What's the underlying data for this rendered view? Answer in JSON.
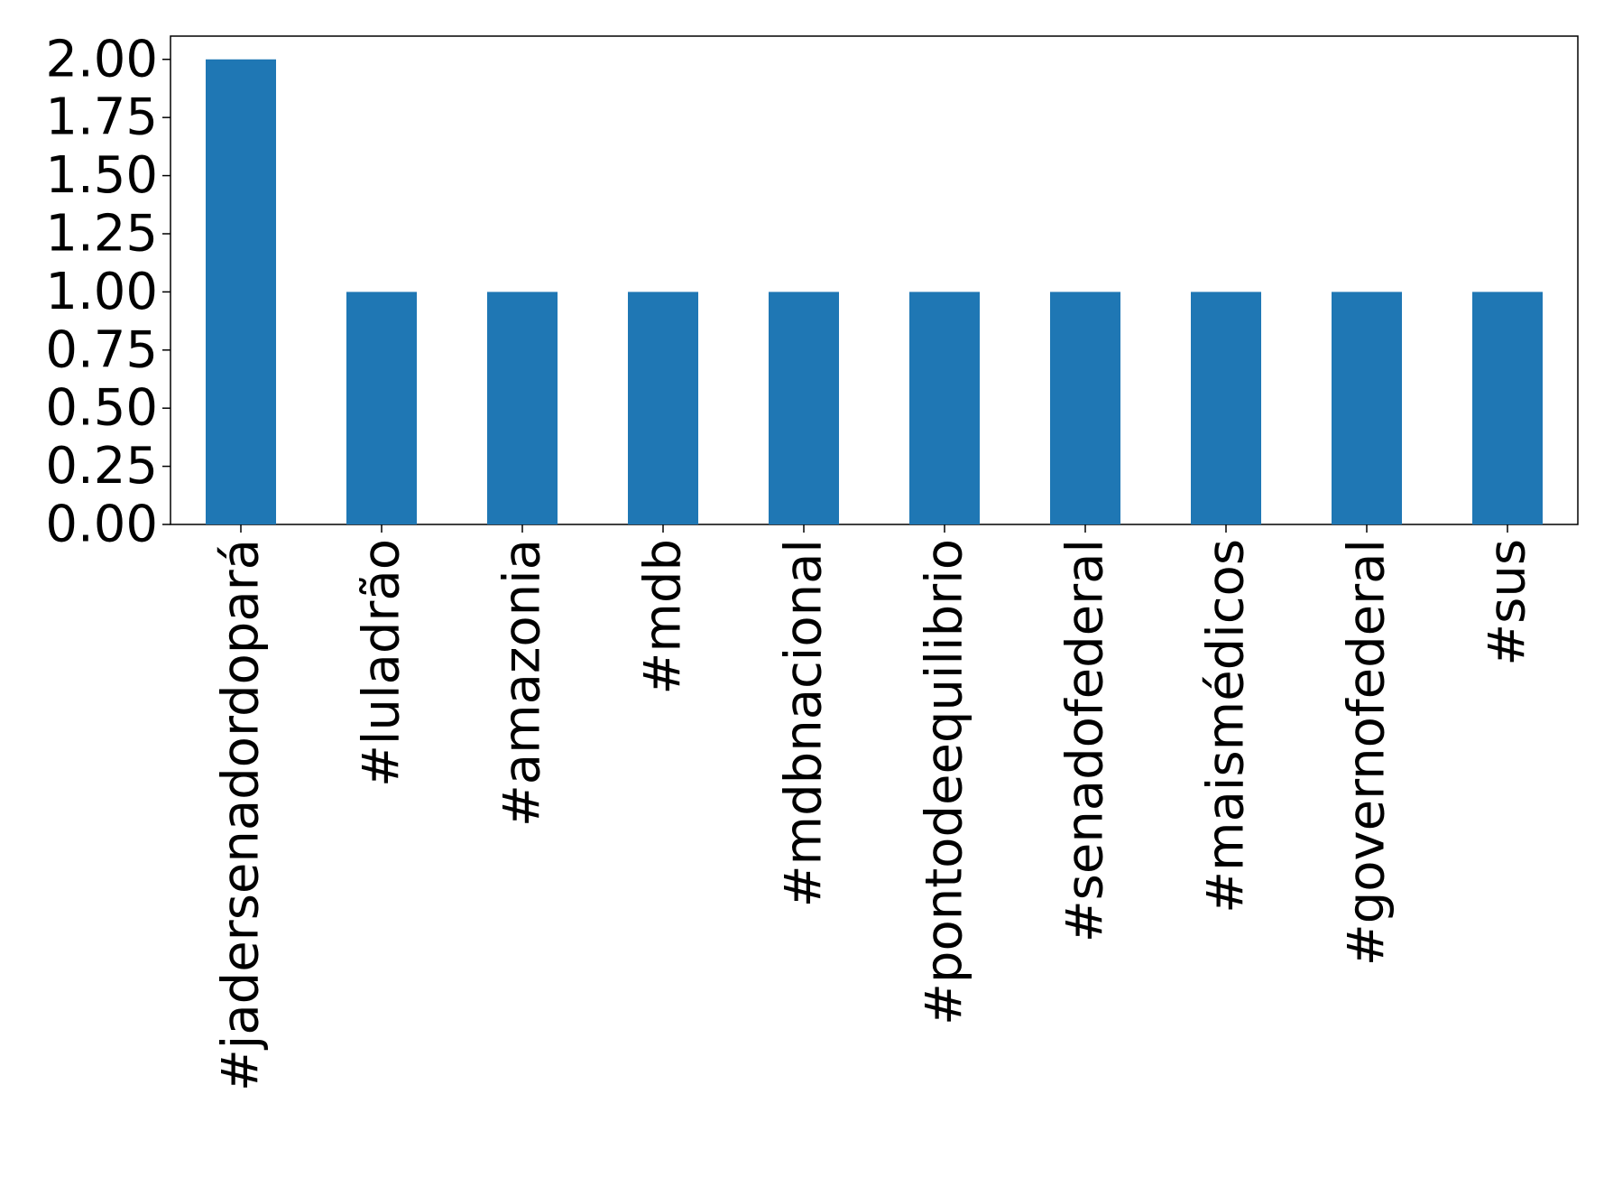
{
  "chart_data": {
    "type": "bar",
    "categories": [
      "#jadersenadordopará",
      "#luladrão",
      "#amazonia",
      "#mdb",
      "#mdbnacional",
      "#pontodeequilibrio",
      "#senadofederal",
      "#maismédicos",
      "#governofederal",
      "#sus"
    ],
    "values": [
      2,
      1,
      1,
      1,
      1,
      1,
      1,
      1,
      1,
      1
    ],
    "color": "#1f77b4",
    "ylim": [
      0,
      2.1
    ],
    "yticks": [
      {
        "value": 0,
        "label": "0.00"
      },
      {
        "value": 0.25,
        "label": "0.25"
      },
      {
        "value": 0.5,
        "label": "0.50"
      },
      {
        "value": 0.75,
        "label": "0.75"
      },
      {
        "value": 1,
        "label": "1.00"
      },
      {
        "value": 1.25,
        "label": "1.25"
      },
      {
        "value": 1.5,
        "label": "1.50"
      },
      {
        "value": 1.75,
        "label": "1.75"
      },
      {
        "value": 2,
        "label": "2.00"
      }
    ],
    "grid": false
  }
}
